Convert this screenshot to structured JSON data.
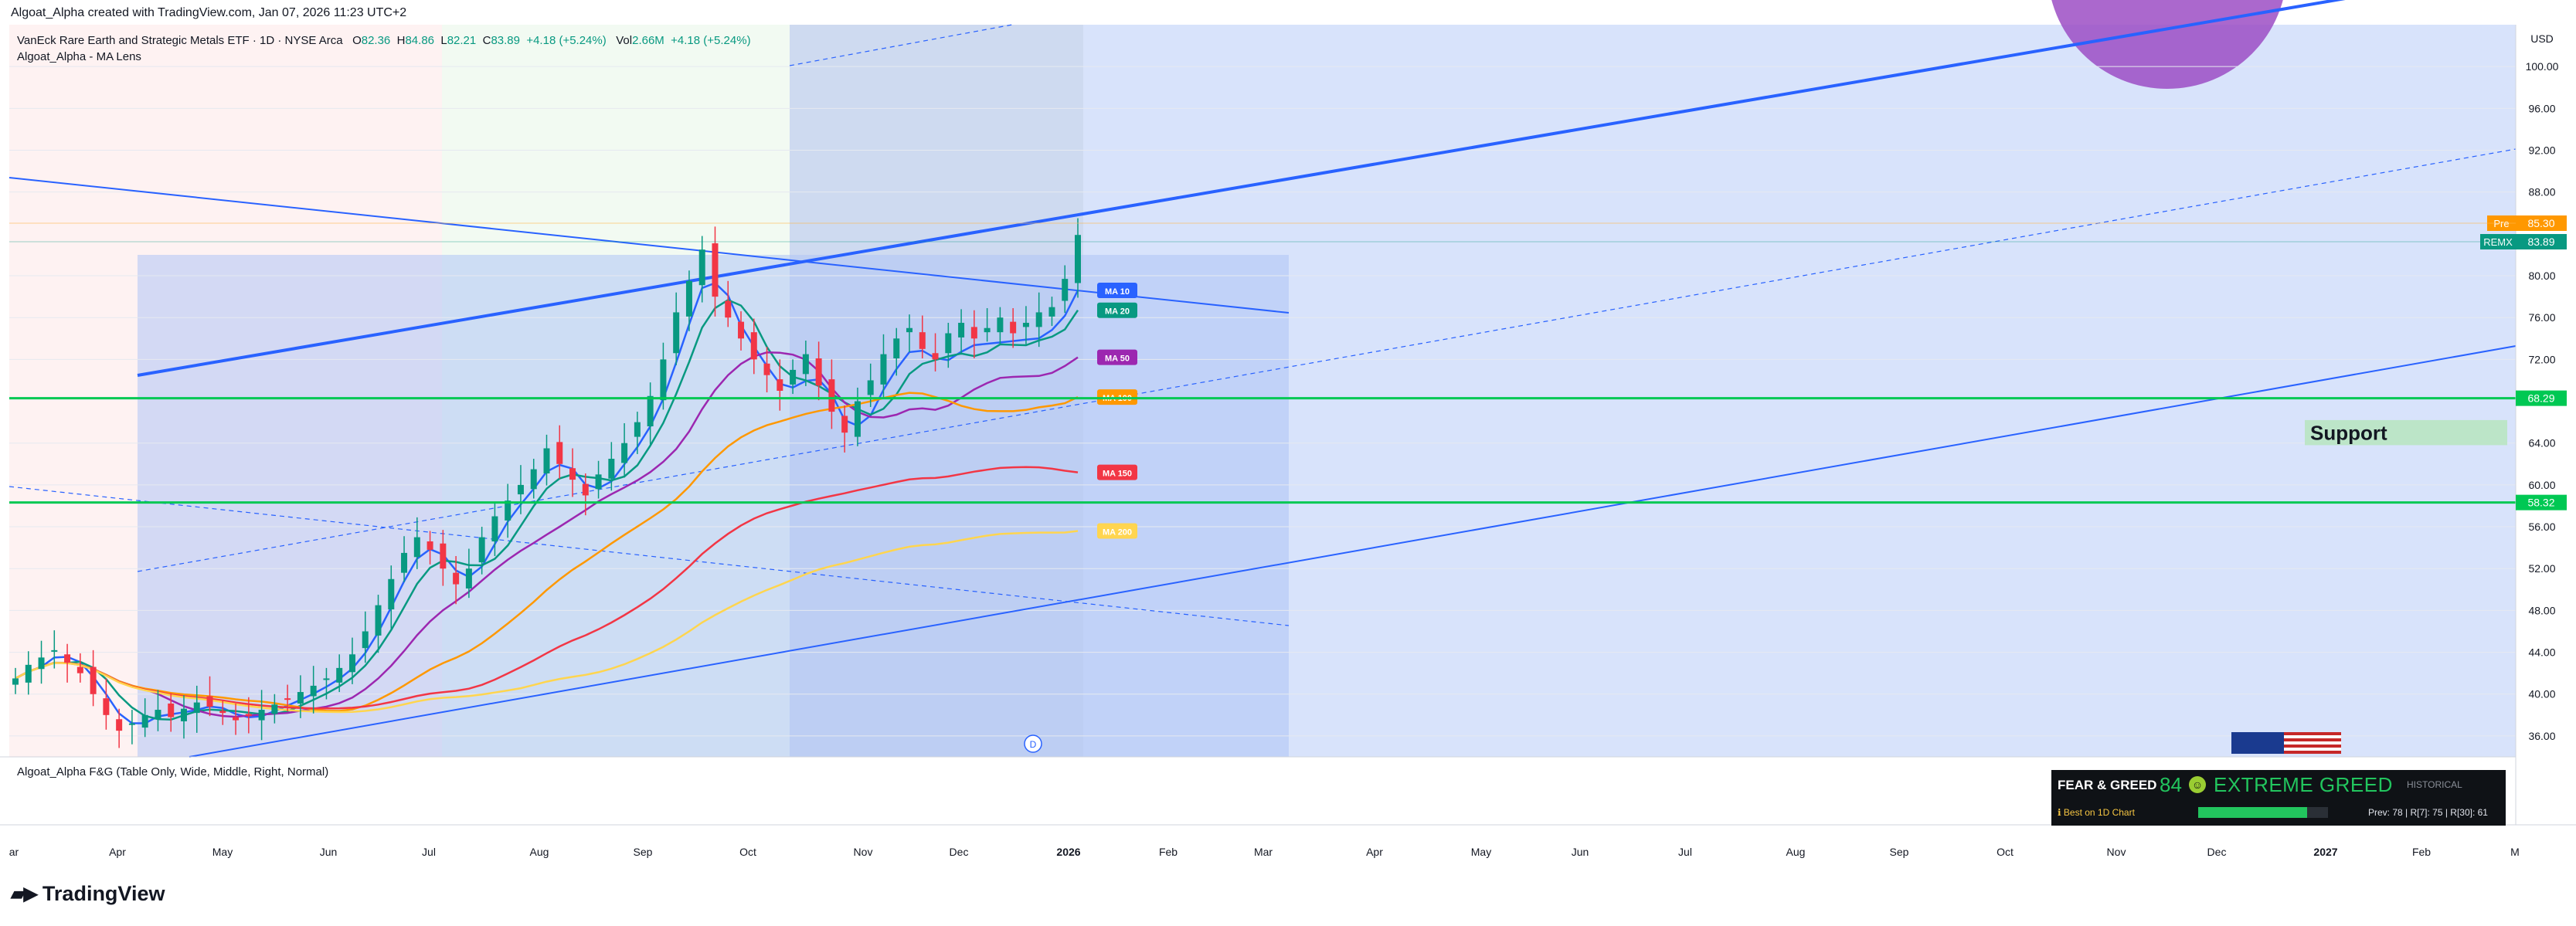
{
  "header": {
    "caption": "Algoat_Alpha created with TradingView.com, Jan 07, 2026 11:23 UTC+2"
  },
  "legend": {
    "symbol_line": "VanEck Rare Earth and Strategic Metals ETF · 1D · NYSE Arca",
    "o_label": "O",
    "o": "82.36",
    "h_label": "H",
    "h": "84.86",
    "l_label": "L",
    "l": "82.21",
    "c_label": "C",
    "c": "83.89",
    "chg": "+4.18 (+5.24%)",
    "vol_label": "Vol",
    "vol": "2.66M",
    "vol_chg": "+4.18 (+5.24%)",
    "study": "Algoat_Alpha - MA Lens"
  },
  "indicator_label": "Algoat_Alpha F&G (Table Only, Wide, Middle, Right, Normal)",
  "logo": "TradingView",
  "fear_greed": {
    "title": "FEAR & GREED",
    "value": "84",
    "label": "EXTREME GREED",
    "historical": "HISTORICAL",
    "note": "ℹ Best on 1D Chart",
    "level": 0.84,
    "prev": "Prev: 78 | R[7]: 75 | R[30]: 61"
  },
  "colors": {
    "up": "#089981",
    "down": "#f23645",
    "channel": "#2962ff",
    "support_line": "#00c853",
    "ma10": "#2962ff",
    "ma20": "#089981",
    "ma50": "#9c27b0",
    "ma100": "#ff9800",
    "ma150": "#f23645",
    "ma200": "#ffd54f"
  },
  "chart_data": {
    "type": "candlestick",
    "currency_label": "USD",
    "ylim": [
      34,
      104
    ],
    "y_ticks": [
      "100.00",
      "96.00",
      "92.00",
      "88.00",
      "80.00",
      "76.00",
      "72.00",
      "64.00",
      "60.00",
      "56.00",
      "52.00",
      "48.00",
      "44.00",
      "40.00",
      "36.00"
    ],
    "x_ticks": [
      "ar",
      "Apr",
      "May",
      "Jun",
      "Jul",
      "Aug",
      "Sep",
      "Oct",
      "Nov",
      "Dec",
      "2026",
      "Feb",
      "Mar",
      "Apr",
      "May",
      "Jun",
      "Jul",
      "Aug",
      "Sep",
      "Oct",
      "Nov",
      "Dec",
      "2027",
      "Feb",
      "M"
    ],
    "price_tags": [
      {
        "label": "Pre",
        "value": "85.30",
        "color": "#ff9800"
      },
      {
        "label": "REMX",
        "value": "83.89",
        "color": "#089981"
      },
      {
        "label": "",
        "value": "68.29",
        "color": "#00c853"
      },
      {
        "label": "",
        "value": "58.32",
        "color": "#00c853"
      }
    ],
    "support_levels": [
      68.29,
      58.32
    ],
    "support_zone_label": "Support",
    "ma_labels": [
      "MA 10",
      "MA 20",
      "MA 50",
      "MA 100",
      "MA 150",
      "MA 200"
    ],
    "ma_last": [
      78.6,
      76.7,
      72.2,
      68.4,
      61.2,
      55.6
    ],
    "closes": [
      41.5,
      42.8,
      43.5,
      44.2,
      43.0,
      42.0,
      40.0,
      38.0,
      36.5,
      37.2,
      38.0,
      38.5,
      37.8,
      38.6,
      39.2,
      38.8,
      38.2,
      37.5,
      37.9,
      38.5,
      39.0,
      39.5,
      40.2,
      40.8,
      41.5,
      42.5,
      43.8,
      46.0,
      48.5,
      51.0,
      53.5,
      55.0,
      53.8,
      52.0,
      50.5,
      52.0,
      55.0,
      57.0,
      58.5,
      60.0,
      61.5,
      63.5,
      62.0,
      60.5,
      59.0,
      61.0,
      62.5,
      64.0,
      66.0,
      68.5,
      72.0,
      76.5,
      79.5,
      82.5,
      78.0,
      76.0,
      74.0,
      72.0,
      70.5,
      69.0,
      71.0,
      72.5,
      69.5,
      67.0,
      65.0,
      68.0,
      70.0,
      72.5,
      74.0,
      75.0,
      73.0,
      72.0,
      74.5,
      75.5,
      74.0,
      75.0,
      76.0,
      74.5,
      75.5,
      76.5,
      77.0,
      79.7,
      83.9
    ],
    "annotations": [
      "D"
    ]
  }
}
